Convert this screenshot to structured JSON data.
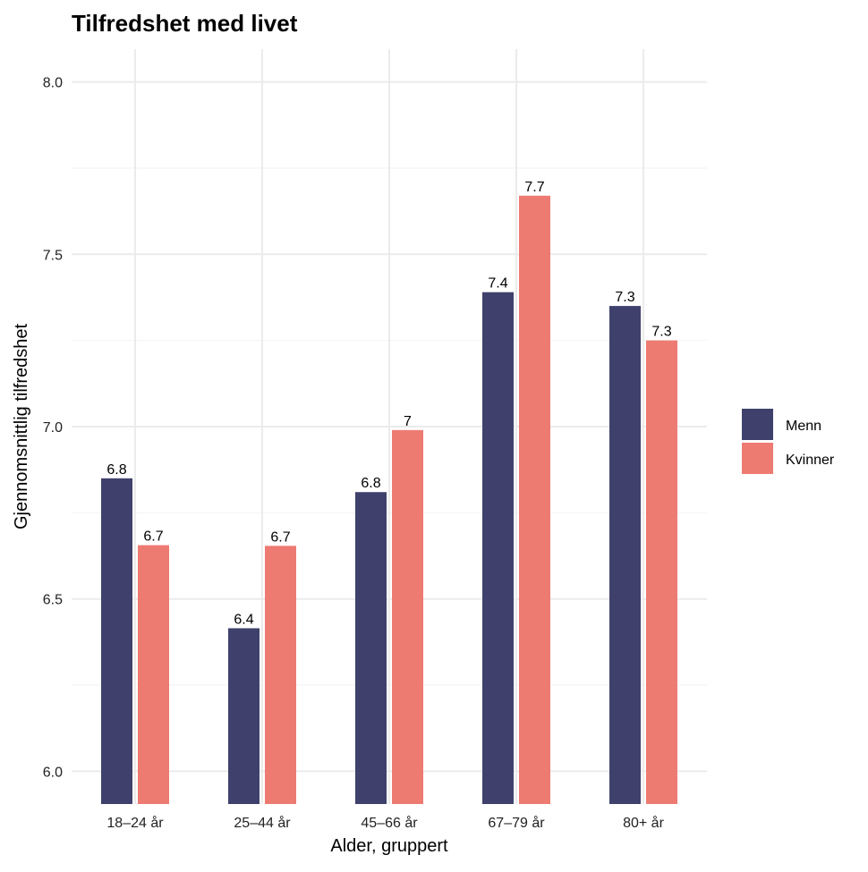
{
  "chart_data": {
    "type": "bar",
    "title": "Tilfredshet med livet",
    "xlabel": "Alder, gruppert",
    "ylabel": "Gjennomsnittlig tilfredshet",
    "categories": [
      "18–24 år",
      "25–44 år",
      "45–66 år",
      "67–79 år",
      "80+ år"
    ],
    "series": [
      {
        "name": "Menn",
        "color": "#3f416c",
        "values": [
          6.85,
          6.415,
          6.81,
          7.39,
          7.35
        ],
        "labels": [
          "6.8",
          "6.4",
          "6.8",
          "7.4",
          "7.3"
        ]
      },
      {
        "name": "Kvinner",
        "color": "#ed7b72",
        "values": [
          6.656,
          6.654,
          6.99,
          7.67,
          7.25
        ],
        "labels": [
          "6.7",
          "6.7",
          "7",
          "7.7",
          "7.3"
        ]
      }
    ],
    "ylim": [
      5.905,
      8.095
    ],
    "yticks": [
      "6.0",
      "6.5",
      "7.0",
      "7.5",
      "8.0"
    ],
    "grid": true,
    "legend": "right"
  }
}
